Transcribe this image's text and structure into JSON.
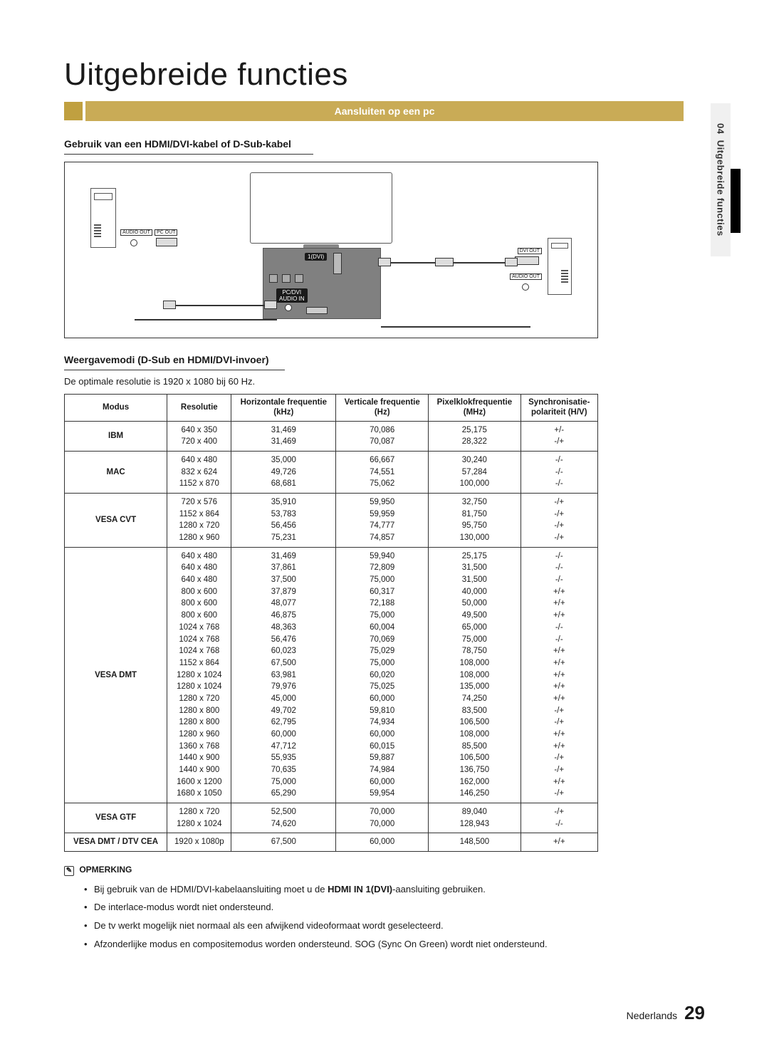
{
  "sideTab": {
    "chapter": "04",
    "title": "Uitgebreide functies"
  },
  "pageTitle": "Uitgebreide functies",
  "sectionBar": "Aansluiten op een pc",
  "subhead1": "Gebruik van een HDMI/DVI-kabel of D-Sub-kabel",
  "diagram": {
    "audioOutLeft": "AUDIO OUT",
    "pcOut": "PC OUT",
    "hdmi1": "1(DVI)",
    "audioInCenter": "PC/DVI\nAUDIO IN",
    "dviOut": "DVI OUT",
    "audioOutRight": "AUDIO OUT"
  },
  "subhead2": "Weergavemodi (D-Sub en HDMI/DVI-invoer)",
  "optimalRes": "De optimale resolutie is 1920 x 1080 bij 60 Hz.",
  "table": {
    "headers": [
      "Modus",
      "Resolutie",
      "Horizontale frequentie\n(kHz)",
      "Verticale frequentie\n(Hz)",
      "Pixelklokfrequentie\n(MHz)",
      "Synchronisatie-\npolariteit (H/V)"
    ],
    "rows": [
      {
        "mode": "IBM",
        "res": [
          "640 x 350",
          "720 x 400"
        ],
        "h": [
          "31,469",
          "31,469"
        ],
        "v": [
          "70,086",
          "70,087"
        ],
        "p": [
          "25,175",
          "28,322"
        ],
        "s": [
          "+/-",
          "-/+"
        ]
      },
      {
        "mode": "MAC",
        "res": [
          "640 x 480",
          "832 x 624",
          "1152 x 870"
        ],
        "h": [
          "35,000",
          "49,726",
          "68,681"
        ],
        "v": [
          "66,667",
          "74,551",
          "75,062"
        ],
        "p": [
          "30,240",
          "57,284",
          "100,000"
        ],
        "s": [
          "-/-",
          "-/-",
          "-/-"
        ]
      },
      {
        "mode": "VESA CVT",
        "res": [
          "720 x 576",
          "1152 x 864",
          "1280 x 720",
          "1280 x 960"
        ],
        "h": [
          "35,910",
          "53,783",
          "56,456",
          "75,231"
        ],
        "v": [
          "59,950",
          "59,959",
          "74,777",
          "74,857"
        ],
        "p": [
          "32,750",
          "81,750",
          "95,750",
          "130,000"
        ],
        "s": [
          "-/+",
          "-/+",
          "-/+",
          "-/+"
        ]
      },
      {
        "mode": "VESA DMT",
        "res": [
          "640 x 480",
          "640 x 480",
          "640 x 480",
          "800 x 600",
          "800 x 600",
          "800 x 600",
          "1024 x 768",
          "1024 x 768",
          "1024 x 768",
          "1152 x 864",
          "1280 x 1024",
          "1280 x 1024",
          "1280 x 720",
          "1280 x 800",
          "1280 x 800",
          "1280 x 960",
          "1360 x 768",
          "1440 x 900",
          "1440 x 900",
          "1600 x 1200",
          "1680 x 1050"
        ],
        "h": [
          "31,469",
          "37,861",
          "37,500",
          "37,879",
          "48,077",
          "46,875",
          "48,363",
          "56,476",
          "60,023",
          "67,500",
          "63,981",
          "79,976",
          "45,000",
          "49,702",
          "62,795",
          "60,000",
          "47,712",
          "55,935",
          "70,635",
          "75,000",
          "65,290"
        ],
        "v": [
          "59,940",
          "72,809",
          "75,000",
          "60,317",
          "72,188",
          "75,000",
          "60,004",
          "70,069",
          "75,029",
          "75,000",
          "60,020",
          "75,025",
          "60,000",
          "59,810",
          "74,934",
          "60,000",
          "60,015",
          "59,887",
          "74,984",
          "60,000",
          "59,954"
        ],
        "p": [
          "25,175",
          "31,500",
          "31,500",
          "40,000",
          "50,000",
          "49,500",
          "65,000",
          "75,000",
          "78,750",
          "108,000",
          "108,000",
          "135,000",
          "74,250",
          "83,500",
          "106,500",
          "108,000",
          "85,500",
          "106,500",
          "136,750",
          "162,000",
          "146,250"
        ],
        "s": [
          "-/-",
          "-/-",
          "-/-",
          "+/+",
          "+/+",
          "+/+",
          "-/-",
          "-/-",
          "+/+",
          "+/+",
          "+/+",
          "+/+",
          "+/+",
          "-/+",
          "-/+",
          "+/+",
          "+/+",
          "-/+",
          "-/+",
          "+/+",
          "-/+"
        ]
      },
      {
        "mode": "VESA GTF",
        "res": [
          "1280 x 720",
          "1280 x 1024"
        ],
        "h": [
          "52,500",
          "74,620"
        ],
        "v": [
          "70,000",
          "70,000"
        ],
        "p": [
          "89,040",
          "128,943"
        ],
        "s": [
          "-/+",
          "-/-"
        ]
      },
      {
        "mode": "VESA DMT / DTV CEA",
        "res": [
          "1920 x 1080p"
        ],
        "h": [
          "67,500"
        ],
        "v": [
          "60,000"
        ],
        "p": [
          "148,500"
        ],
        "s": [
          "+/+"
        ]
      }
    ]
  },
  "notesTitle": "OPMERKING",
  "notes": [
    {
      "pre": "Bij gebruik van de HDMI/DVI-kabelaansluiting moet u de ",
      "bold": "HDMI IN 1(DVI)",
      "post": "-aansluiting gebruiken."
    },
    {
      "pre": "De interlace-modus wordt niet ondersteund.",
      "bold": "",
      "post": ""
    },
    {
      "pre": "De tv werkt mogelijk niet normaal als een afwijkend videoformaat wordt geselecteerd.",
      "bold": "",
      "post": ""
    },
    {
      "pre": "Afzonderlijke modus en compositemodus worden ondersteund. SOG (Sync On Green) wordt niet ondersteund.",
      "bold": "",
      "post": ""
    }
  ],
  "footer": {
    "lang": "Nederlands",
    "page": "29"
  },
  "colors": {
    "barMain": "#c9ab56",
    "barDark": "#c0a040",
    "sideTab": "#f0f0f0",
    "text": "#1a1a1a"
  }
}
